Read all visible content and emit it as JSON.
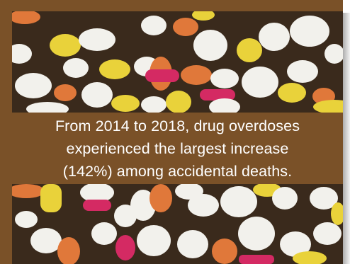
{
  "caption": {
    "line1": "From 2014 to 2018, drug overdoses",
    "line2": "experienced the largest increase",
    "line3": "(142%) among accidental deaths."
  },
  "photo": {
    "subject": "pills-photo",
    "palette": {
      "frame": "#7a5128",
      "background": "#3a2a1c",
      "white_pill": "#f2f1ec",
      "orange_pill": "#e0783a",
      "yellow_pill": "#e9d23a",
      "pink_capsule": "#d42a63"
    }
  }
}
